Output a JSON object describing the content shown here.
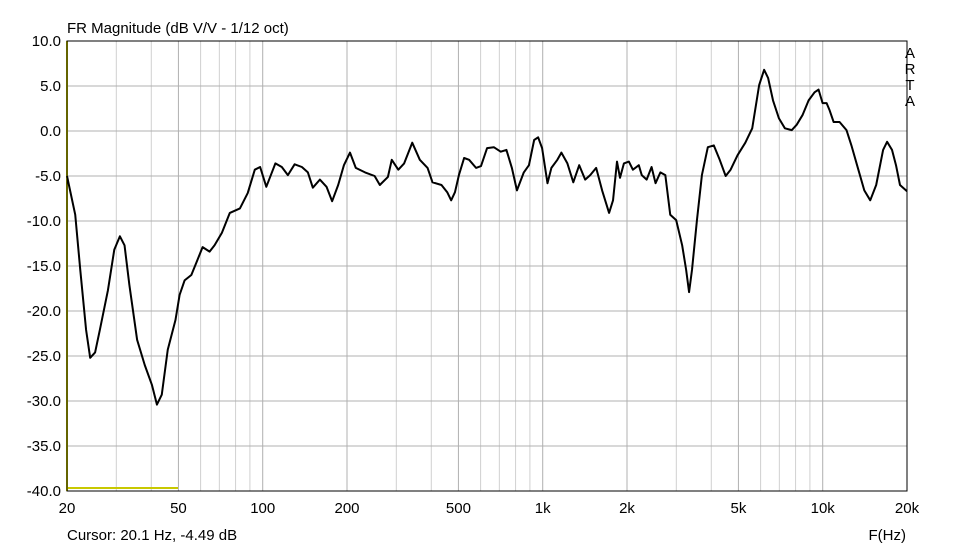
{
  "chart_data": {
    "type": "line",
    "title": "FR Magnitude (dB V/V - 1/12 oct)",
    "watermark": "ARTA",
    "xlabel": "F(Hz)",
    "cursor_text": "Cursor: 20.1 Hz, -4.49 dB",
    "log_x": true,
    "grid": true,
    "xlim": [
      20,
      20000
    ],
    "ylim": [
      -40,
      10
    ],
    "xticks": [
      20,
      50,
      100,
      200,
      500,
      {
        "value": 1000,
        "label": "1k"
      },
      {
        "value": 2000,
        "label": "2k"
      },
      {
        "value": 5000,
        "label": "5k"
      },
      {
        "value": 10000,
        "label": "10k"
      },
      {
        "value": 20000,
        "label": "20k"
      }
    ],
    "xgrid_minor": [
      30,
      40,
      60,
      70,
      80,
      90,
      300,
      400,
      600,
      700,
      800,
      900,
      3000,
      4000,
      6000,
      7000,
      8000,
      9000
    ],
    "yticks": [
      {
        "value": 10,
        "label": "10.0"
      },
      {
        "value": 5,
        "label": "5.0"
      },
      {
        "value": 0,
        "label": "0.0"
      },
      {
        "value": -5,
        "label": "-5.0"
      },
      {
        "value": -10,
        "label": "-10.0"
      },
      {
        "value": -15,
        "label": "-15.0"
      },
      {
        "value": -20,
        "label": "-20.0"
      },
      {
        "value": -25,
        "label": "-25.0"
      },
      {
        "value": -30,
        "label": "-30.0"
      },
      {
        "value": -35,
        "label": "-35.0"
      },
      {
        "value": -40,
        "label": "-40.0"
      }
    ],
    "x": [
      20,
      21.4,
      22.3,
      23.4,
      24.2,
      25.2,
      26.2,
      28,
      29.5,
      30.9,
      32.1,
      33.4,
      35.6,
      37.9,
      40.2,
      41.9,
      43.6,
      45.8,
      48.8,
      50.5,
      52.6,
      55.6,
      58,
      61,
      64.6,
      67.3,
      71.5,
      76.3,
      82.9,
      88.4,
      93.7,
      97.9,
      103,
      106,
      111,
      117,
      123,
      130,
      138,
      145,
      151,
      160,
      169,
      177,
      186,
      195,
      205,
      215,
      232,
      251,
      262,
      280,
      289,
      305,
      320,
      342,
      364,
      388,
      404,
      435,
      456,
      471,
      486,
      502,
      524,
      546,
      578,
      602,
      633,
      669,
      708,
      742,
      776,
      809,
      856,
      893,
      932,
      963,
      995,
      1040,
      1074,
      1128,
      1166,
      1225,
      1286,
      1350,
      1418,
      1478,
      1552,
      1630,
      1726,
      1783,
      1842,
      1888,
      1950,
      2031,
      2099,
      2204,
      2258,
      2351,
      2448,
      2529,
      2632,
      2741,
      2854,
      2997,
      3148,
      3252,
      3332,
      3414,
      3555,
      3703,
      3888,
      4083,
      4287,
      4502,
      4688,
      4962,
      5292,
      5601,
      5929,
      6177,
      6381,
      6645,
      6978,
      7327,
      7756,
      8077,
      8481,
      8906,
      9351,
      9665,
      9990,
      10326,
      10583,
      10939,
      11486,
      12159,
      12662,
      13406,
      14077,
      14782,
      15522,
      16432,
      16980,
      17680,
      18270,
      18880,
      20000
    ],
    "series": [
      {
        "color": "#000000",
        "values": [
          -5,
          -9.3,
          -15.4,
          -22.1,
          -25.2,
          -24.6,
          -22.1,
          -17.7,
          -13.2,
          -11.7,
          -12.7,
          -17.1,
          -23.2,
          -26,
          -28.2,
          -30.4,
          -29.3,
          -24.3,
          -21,
          -18.2,
          -16.6,
          -16,
          -14.6,
          -12.9,
          -13.4,
          -12.7,
          -11.3,
          -9.1,
          -8.6,
          -6.9,
          -4.3,
          -4,
          -6.2,
          -5.2,
          -3.6,
          -4,
          -4.9,
          -3.7,
          -4,
          -4.6,
          -6.3,
          -5.4,
          -6.2,
          -7.8,
          -6,
          -3.8,
          -2.4,
          -4.1,
          -4.6,
          -5,
          -6,
          -5.1,
          -3.2,
          -4.3,
          -3.6,
          -1.3,
          -3.2,
          -4.1,
          -5.7,
          -6,
          -6.8,
          -7.7,
          -6.8,
          -4.9,
          -3,
          -3.2,
          -4.1,
          -3.9,
          -1.9,
          -1.8,
          -2.3,
          -2.1,
          -4.1,
          -6.6,
          -4.6,
          -3.8,
          -1,
          -0.7,
          -1.9,
          -5.8,
          -4.1,
          -3.2,
          -2.4,
          -3.6,
          -5.7,
          -3.8,
          -5.4,
          -4.9,
          -4.1,
          -6.6,
          -9.1,
          -7.7,
          -3.4,
          -5.2,
          -3.6,
          -3.4,
          -4.3,
          -3.8,
          -4.9,
          -5.4,
          -4,
          -5.8,
          -4.6,
          -4.9,
          -9.3,
          -9.9,
          -12.7,
          -15.4,
          -17.9,
          -15.4,
          -9.9,
          -4.9,
          -1.8,
          -1.6,
          -3.2,
          -5,
          -4.3,
          -2.7,
          -1.3,
          0.3,
          5.1,
          6.8,
          5.9,
          3.4,
          1.4,
          0.3,
          0.1,
          0.7,
          1.8,
          3.4,
          4.3,
          4.6,
          3.1,
          3.1,
          2.3,
          1,
          1,
          0.1,
          -1.6,
          -4.3,
          -6.6,
          -7.7,
          -6,
          -2.1,
          -1.2,
          -2.1,
          -3.8,
          -6,
          -6.7
        ]
      }
    ]
  }
}
